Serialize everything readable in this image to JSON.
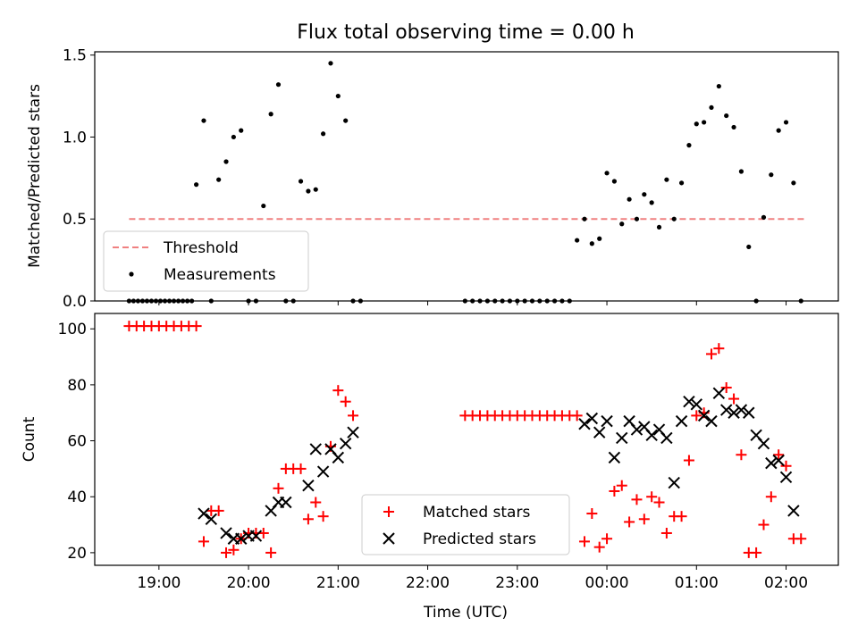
{
  "figure_title": "Flux total observing time = 0.00 h",
  "colors": {
    "threshold": "#f08080",
    "matched": "#ff0000",
    "predicted": "#000000",
    "measurement": "#000000"
  },
  "chart_data": [
    {
      "type": "scatter",
      "title": "Flux total observing time = 0.00 h",
      "xlabel": "",
      "ylabel": "Matched/Predicted stars",
      "xlim": [
        "18:17",
        "02:35"
      ],
      "ylim": [
        0,
        1.52
      ],
      "yticks": [
        "0.0",
        "0.5",
        "1.0",
        "1.5"
      ],
      "yticks_values": [
        0,
        0.5,
        1.0,
        1.5
      ],
      "xticks_values": [
        "19:00",
        "20:00",
        "21:00",
        "22:00",
        "23:00",
        "00:00",
        "01:00",
        "02:00"
      ],
      "legend": {
        "position": "lower-left",
        "entries": [
          "Threshold",
          "Measurements"
        ]
      },
      "threshold": {
        "name": "Threshold",
        "y": 0.5,
        "x_start": "18:40",
        "x_end": "02:12"
      },
      "series": [
        {
          "name": "Measurements",
          "x": [
            "18:40",
            "18:43",
            "18:46",
            "18:49",
            "18:52",
            "18:55",
            "18:58",
            "19:01",
            "19:04",
            "19:07",
            "19:10",
            "19:13",
            "19:16",
            "19:19",
            "19:22",
            "19:25",
            "19:30",
            "19:35",
            "19:40",
            "19:45",
            "19:50",
            "19:55",
            "20:00",
            "20:05",
            "20:10",
            "20:15",
            "20:20",
            "20:25",
            "20:30",
            "20:35",
            "20:40",
            "20:45",
            "20:50",
            "20:55",
            "21:00",
            "21:05",
            "21:10",
            "21:15",
            "22:25",
            "22:30",
            "22:35",
            "22:40",
            "22:45",
            "22:50",
            "22:55",
            "23:00",
            "23:05",
            "23:10",
            "23:15",
            "23:20",
            "23:25",
            "23:30",
            "23:35",
            "23:40",
            "23:45",
            "23:50",
            "23:55",
            "00:00",
            "00:05",
            "00:10",
            "00:15",
            "00:20",
            "00:25",
            "00:30",
            "00:35",
            "00:40",
            "00:45",
            "00:50",
            "00:55",
            "01:00",
            "01:05",
            "01:10",
            "01:15",
            "01:20",
            "01:25",
            "01:30",
            "01:35",
            "01:40",
            "01:45",
            "01:50",
            "01:55",
            "02:00",
            "02:05",
            "02:10"
          ],
          "y": [
            0,
            0,
            0,
            0,
            0,
            0,
            0,
            0,
            0,
            0,
            0,
            0,
            0,
            0,
            0,
            0.71,
            1.1,
            0,
            0.74,
            0.85,
            1.0,
            1.04,
            0,
            0,
            0.58,
            1.14,
            1.32,
            0,
            0,
            0.73,
            0.67,
            0.68,
            1.02,
            1.45,
            1.25,
            1.1,
            0,
            0,
            0,
            0,
            0,
            0,
            0,
            0,
            0,
            0,
            0,
            0,
            0,
            0,
            0,
            0,
            0,
            0.37,
            0.5,
            0.35,
            0.38,
            0.78,
            0.73,
            0.47,
            0.62,
            0.5,
            0.65,
            0.6,
            0.45,
            0.74,
            0.5,
            0.72,
            0.95,
            1.08,
            1.09,
            1.18,
            1.31,
            1.13,
            1.06,
            0.79,
            0.33,
            0,
            0.51,
            0.77,
            1.04,
            1.09,
            0.72,
            0
          ]
        }
      ]
    },
    {
      "type": "scatter",
      "title": "",
      "xlabel": "Time (UTC)",
      "ylabel": "Count",
      "xlim": [
        "18:17",
        "02:35"
      ],
      "ylim": [
        15.5,
        105.5
      ],
      "yticks": [
        "20",
        "40",
        "60",
        "80",
        "100"
      ],
      "yticks_values": [
        20,
        40,
        60,
        80,
        100
      ],
      "xticks": [
        "19:00",
        "20:00",
        "21:00",
        "22:00",
        "23:00",
        "00:00",
        "01:00",
        "02:00"
      ],
      "legend": {
        "position": "lower-center",
        "entries": [
          "Matched stars",
          "Predicted stars"
        ]
      },
      "series": [
        {
          "name": "Matched stars",
          "marker": "plus",
          "x": [
            "18:40",
            "18:45",
            "18:50",
            "18:55",
            "19:00",
            "19:05",
            "19:10",
            "19:15",
            "19:20",
            "19:25",
            "19:30",
            "19:35",
            "19:40",
            "19:45",
            "19:50",
            "19:55",
            "20:00",
            "20:05",
            "20:10",
            "20:15",
            "20:20",
            "20:25",
            "20:30",
            "20:35",
            "20:40",
            "20:45",
            "20:50",
            "20:55",
            "21:00",
            "21:05",
            "21:10",
            "22:25",
            "22:30",
            "22:35",
            "22:40",
            "22:45",
            "22:50",
            "22:55",
            "23:00",
            "23:05",
            "23:10",
            "23:15",
            "23:20",
            "23:25",
            "23:30",
            "23:35",
            "23:40",
            "23:45",
            "23:50",
            "23:55",
            "00:00",
            "00:05",
            "00:10",
            "00:15",
            "00:20",
            "00:25",
            "00:30",
            "00:35",
            "00:40",
            "00:45",
            "00:50",
            "00:55",
            "01:00",
            "01:05",
            "01:10",
            "01:15",
            "01:20",
            "01:25",
            "01:30",
            "01:35",
            "01:40",
            "01:45",
            "01:50",
            "01:55",
            "02:00",
            "02:05",
            "02:10"
          ],
          "y": [
            101,
            101,
            101,
            101,
            101,
            101,
            101,
            101,
            101,
            101,
            24,
            35,
            35,
            20,
            21,
            25,
            27,
            27,
            27,
            20,
            43,
            50,
            50,
            50,
            32,
            38,
            33,
            58,
            78,
            74,
            69,
            69,
            69,
            69,
            69,
            69,
            69,
            69,
            69,
            69,
            69,
            69,
            69,
            69,
            69,
            69,
            69,
            24,
            34,
            22,
            25,
            42,
            44,
            31,
            39,
            32,
            40,
            38,
            27,
            33,
            33,
            53,
            69,
            70,
            91,
            93,
            79,
            75,
            55,
            20,
            20,
            30,
            40,
            55,
            51,
            25,
            25
          ]
        },
        {
          "name": "Predicted stars",
          "marker": "x",
          "x": [
            "19:30",
            "19:35",
            "19:45",
            "19:50",
            "19:55",
            "20:00",
            "20:05",
            "20:15",
            "20:20",
            "20:25",
            "20:40",
            "20:45",
            "20:50",
            "20:55",
            "21:00",
            "21:05",
            "21:10",
            "23:45",
            "23:50",
            "23:55",
            "00:00",
            "00:05",
            "00:10",
            "00:15",
            "00:20",
            "00:25",
            "00:30",
            "00:35",
            "00:40",
            "00:45",
            "00:50",
            "00:55",
            "01:00",
            "01:05",
            "01:10",
            "01:15",
            "01:20",
            "01:25",
            "01:30",
            "01:35",
            "01:40",
            "01:45",
            "01:50",
            "01:55",
            "02:00",
            "02:05"
          ],
          "y": [
            34,
            32,
            27,
            25,
            25,
            26,
            26,
            35,
            38,
            38,
            44,
            57,
            49,
            57,
            54,
            59,
            63,
            66,
            68,
            63,
            67,
            54,
            61,
            67,
            64,
            65,
            62,
            64,
            61,
            45,
            67,
            74,
            73,
            69,
            67,
            77,
            71,
            70,
            71,
            70,
            62,
            59,
            52,
            53,
            47,
            35
          ]
        }
      ]
    }
  ]
}
